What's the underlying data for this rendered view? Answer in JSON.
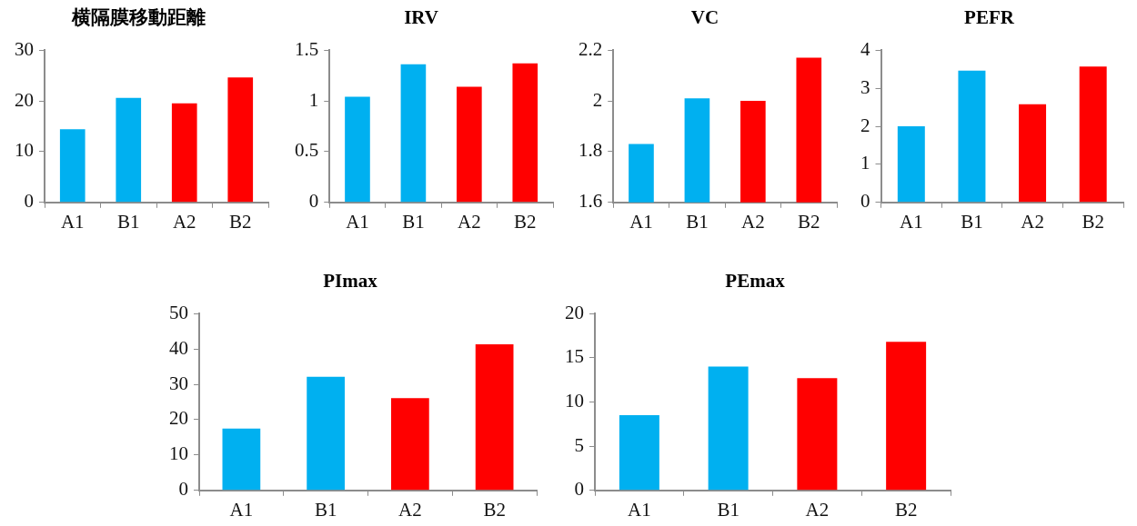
{
  "chart_data": [
    {
      "type": "bar",
      "title": "横隔膜移動距離",
      "categories": [
        "A1",
        "B1",
        "A2",
        "B2"
      ],
      "values": [
        14.4,
        20.6,
        19.5,
        24.6
      ],
      "colors": [
        "#00b0f0",
        "#00b0f0",
        "#ff0000",
        "#ff0000"
      ],
      "ylim": [
        0,
        30
      ],
      "yticks": [
        0,
        10,
        20,
        30
      ],
      "grid": false,
      "legend": false
    },
    {
      "type": "bar",
      "title": "IRV",
      "categories": [
        "A1",
        "B1",
        "A2",
        "B2"
      ],
      "values": [
        1.04,
        1.36,
        1.14,
        1.37
      ],
      "colors": [
        "#00b0f0",
        "#00b0f0",
        "#ff0000",
        "#ff0000"
      ],
      "ylim": [
        0,
        1.5
      ],
      "yticks": [
        0,
        0.5,
        1,
        1.5
      ],
      "grid": false,
      "legend": false
    },
    {
      "type": "bar",
      "title": "VC",
      "categories": [
        "A1",
        "B1",
        "A2",
        "B2"
      ],
      "values": [
        1.83,
        2.01,
        2.0,
        2.17
      ],
      "colors": [
        "#00b0f0",
        "#00b0f0",
        "#ff0000",
        "#ff0000"
      ],
      "ylim": [
        1.6,
        2.2
      ],
      "yticks": [
        1.6,
        1.8,
        2,
        2.2
      ],
      "grid": false,
      "legend": false
    },
    {
      "type": "bar",
      "title": "PEFR",
      "categories": [
        "A1",
        "B1",
        "A2",
        "B2"
      ],
      "values": [
        2.0,
        3.46,
        2.58,
        3.57
      ],
      "colors": [
        "#00b0f0",
        "#00b0f0",
        "#ff0000",
        "#ff0000"
      ],
      "ylim": [
        0,
        4
      ],
      "yticks": [
        0,
        1,
        2,
        3,
        4
      ],
      "grid": false,
      "legend": false
    },
    {
      "type": "bar",
      "title": "PImax",
      "categories": [
        "A1",
        "B1",
        "A2",
        "B2"
      ],
      "values": [
        17.5,
        32.1,
        26.1,
        41.3
      ],
      "colors": [
        "#00b0f0",
        "#00b0f0",
        "#ff0000",
        "#ff0000"
      ],
      "ylim": [
        0,
        50
      ],
      "yticks": [
        0,
        10,
        20,
        30,
        40,
        50
      ],
      "grid": false,
      "legend": false
    },
    {
      "type": "bar",
      "title": "PEmax",
      "categories": [
        "A1",
        "B1",
        "A2",
        "B2"
      ],
      "values": [
        8.5,
        14.0,
        12.7,
        16.8
      ],
      "colors": [
        "#00b0f0",
        "#00b0f0",
        "#ff0000",
        "#ff0000"
      ],
      "ylim": [
        0,
        20
      ],
      "yticks": [
        0,
        5,
        10,
        15,
        20
      ],
      "grid": false,
      "legend": false
    }
  ]
}
